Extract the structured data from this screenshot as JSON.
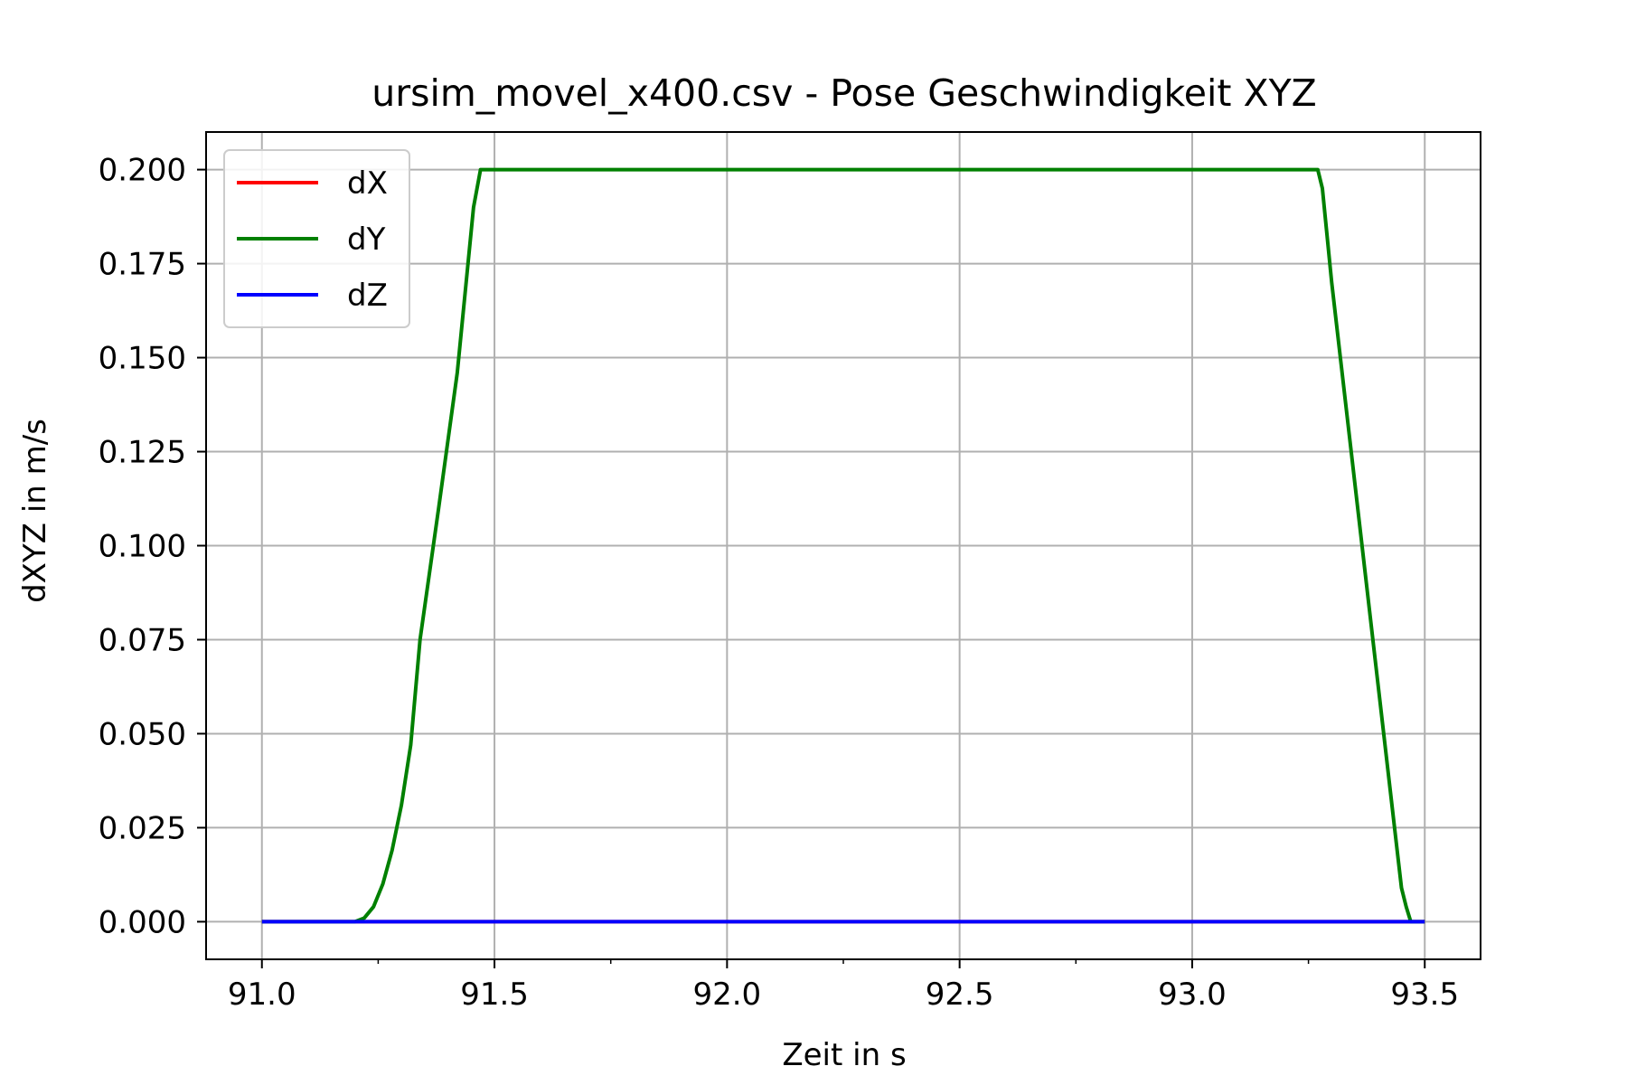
{
  "chart_data": {
    "type": "line",
    "title": "ursim_movel_x400.csv - Pose Geschwindigkeit XYZ",
    "xlabel": "Zeit in s",
    "ylabel": "dXYZ in m/s",
    "xlim": [
      90.88,
      93.62
    ],
    "ylim": [
      -0.01,
      0.21
    ],
    "x_ticks": [
      91.0,
      91.5,
      92.0,
      92.5,
      93.0,
      93.5
    ],
    "x_tick_labels": [
      "91.0",
      "91.5",
      "92.0",
      "92.5",
      "93.0",
      "93.5"
    ],
    "x_minor_ticks": [
      91.25,
      91.75,
      92.25,
      92.75,
      93.25
    ],
    "y_ticks": [
      0.0,
      0.025,
      0.05,
      0.075,
      0.1,
      0.125,
      0.15,
      0.175,
      0.2
    ],
    "y_tick_labels": [
      "0.000",
      "0.025",
      "0.050",
      "0.075",
      "0.100",
      "0.125",
      "0.150",
      "0.175",
      "0.200"
    ],
    "grid": true,
    "legend_position": "top-left",
    "series": [
      {
        "name": "dX",
        "color": "#ff0000",
        "points": [
          [
            91.0,
            0.0
          ],
          [
            93.5,
            0.0
          ]
        ]
      },
      {
        "name": "dY",
        "color": "#008000",
        "points": [
          [
            91.0,
            0.0
          ],
          [
            91.2,
            0.0
          ],
          [
            91.22,
            0.001
          ],
          [
            91.24,
            0.004
          ],
          [
            91.26,
            0.01
          ],
          [
            91.28,
            0.019
          ],
          [
            91.3,
            0.031
          ],
          [
            91.32,
            0.047
          ],
          [
            91.34,
            0.075
          ],
          [
            91.38,
            0.11
          ],
          [
            91.42,
            0.146
          ],
          [
            91.455,
            0.19
          ],
          [
            91.47,
            0.2
          ],
          [
            93.27,
            0.2
          ],
          [
            93.28,
            0.195
          ],
          [
            93.3,
            0.17
          ],
          [
            93.45,
            0.009
          ],
          [
            93.46,
            0.004
          ],
          [
            93.47,
            0.0
          ],
          [
            93.5,
            0.0
          ]
        ]
      },
      {
        "name": "dZ",
        "color": "#0000ff",
        "points": [
          [
            91.0,
            0.0
          ],
          [
            93.5,
            0.0
          ]
        ]
      }
    ]
  }
}
